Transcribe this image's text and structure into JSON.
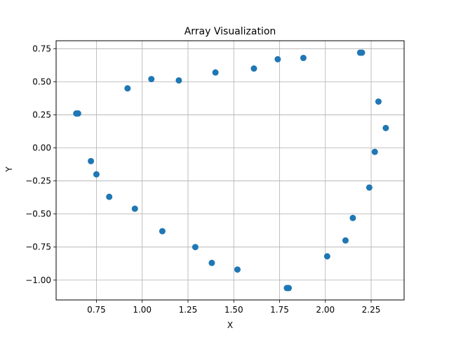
{
  "chart_data": {
    "type": "scatter",
    "title": "Array Visualization",
    "xlabel": "X",
    "ylabel": "Y",
    "xlim": [
      0.53,
      2.43
    ],
    "ylim": [
      -1.15,
      0.81
    ],
    "xticks": [
      0.75,
      1.0,
      1.25,
      1.5,
      1.75,
      2.0,
      2.25
    ],
    "xtick_labels": [
      "0.75",
      "1.00",
      "1.25",
      "1.50",
      "1.75",
      "2.00",
      "2.25"
    ],
    "yticks": [
      -1.0,
      -0.75,
      -0.5,
      -0.25,
      0.0,
      0.25,
      0.5,
      0.75
    ],
    "ytick_labels": [
      "−1.00",
      "−0.75",
      "−0.50",
      "−0.25",
      "0.00",
      "0.25",
      "0.50",
      "0.75"
    ],
    "grid": true,
    "marker_color": "#1f77b4",
    "points": [
      {
        "x": 0.64,
        "y": 0.26
      },
      {
        "x": 0.65,
        "y": 0.26
      },
      {
        "x": 0.72,
        "y": -0.1
      },
      {
        "x": 0.75,
        "y": -0.2
      },
      {
        "x": 0.82,
        "y": -0.37
      },
      {
        "x": 0.92,
        "y": 0.45
      },
      {
        "x": 0.96,
        "y": -0.46
      },
      {
        "x": 1.05,
        "y": 0.52
      },
      {
        "x": 1.11,
        "y": -0.63
      },
      {
        "x": 1.2,
        "y": 0.51
      },
      {
        "x": 1.29,
        "y": -0.75
      },
      {
        "x": 1.4,
        "y": 0.57
      },
      {
        "x": 1.38,
        "y": -0.87
      },
      {
        "x": 1.52,
        "y": -0.92
      },
      {
        "x": 1.61,
        "y": 0.6
      },
      {
        "x": 1.74,
        "y": 0.67
      },
      {
        "x": 1.79,
        "y": -1.06
      },
      {
        "x": 1.8,
        "y": -1.06
      },
      {
        "x": 1.88,
        "y": 0.68
      },
      {
        "x": 2.01,
        "y": -0.82
      },
      {
        "x": 2.11,
        "y": -0.7
      },
      {
        "x": 2.15,
        "y": -0.53
      },
      {
        "x": 2.19,
        "y": 0.72
      },
      {
        "x": 2.2,
        "y": 0.72
      },
      {
        "x": 2.24,
        "y": -0.3
      },
      {
        "x": 2.27,
        "y": -0.03
      },
      {
        "x": 2.29,
        "y": 0.35
      },
      {
        "x": 2.33,
        "y": 0.15
      }
    ]
  }
}
